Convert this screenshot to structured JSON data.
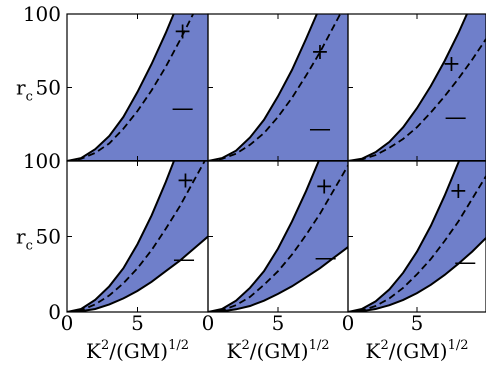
{
  "chart_data": {
    "type": "area",
    "layout": {
      "rows": 2,
      "cols": 3
    },
    "xlabel": {
      "base": "K",
      "sup": "2",
      "mid": "/(GM)",
      "sup2": "1/2"
    },
    "ylabel": {
      "base": "r",
      "sub": "c"
    },
    "xlim": [
      0,
      10
    ],
    "ylim": [
      0,
      100
    ],
    "x_ticks": [
      "0",
      "5"
    ],
    "y_ticks": [
      "0",
      "50",
      "100"
    ],
    "colors": {
      "fill": "#6f7fca",
      "line": "#000000",
      "axis": "#000000"
    },
    "x_samples": [
      0,
      1,
      2,
      3,
      4,
      5,
      6,
      7,
      8,
      9,
      10
    ],
    "panels": [
      {
        "upper": [
          0,
          2,
          8,
          17,
          30,
          47,
          66,
          87,
          110,
          135,
          160
        ],
        "lower": [
          0,
          0,
          0,
          0,
          0,
          0,
          0,
          0,
          0,
          0,
          0
        ],
        "dashed": [
          0,
          1.5,
          5.5,
          12,
          22,
          34,
          48,
          64,
          82,
          101,
          120
        ],
        "plus": [
          8.2,
          88
        ],
        "minus": [
          8.2,
          36
        ]
      },
      {
        "upper": [
          0,
          2,
          7,
          16,
          28,
          44,
          62,
          83,
          105,
          128,
          152
        ],
        "lower": [
          0,
          0,
          0,
          0,
          0,
          0,
          0,
          0,
          0,
          0,
          0
        ],
        "dashed": [
          0,
          1.4,
          5,
          11,
          19,
          30,
          43,
          58,
          74,
          92,
          110
        ],
        "plus": [
          8.0,
          74
        ],
        "minus": [
          8.0,
          22
        ]
      },
      {
        "upper": [
          0,
          1.5,
          6,
          13,
          23,
          36,
          51,
          68,
          87,
          108,
          130
        ],
        "lower": [
          0,
          0,
          0,
          0,
          0,
          0,
          0,
          0,
          0,
          0,
          0
        ],
        "dashed": [
          0,
          1,
          4,
          9,
          15,
          23,
          33,
          44,
          56,
          69,
          83
        ],
        "plus": [
          7.5,
          66
        ],
        "minus": [
          7.8,
          30
        ]
      },
      {
        "upper": [
          0,
          2,
          8,
          17,
          29,
          45,
          64,
          86,
          110,
          136,
          162
        ],
        "lower": [
          0,
          0.5,
          2,
          5,
          9,
          14,
          20,
          27,
          34,
          42,
          50
        ],
        "dashed": [
          0,
          1.2,
          5,
          11,
          19,
          29,
          41,
          55,
          70,
          87,
          104
        ],
        "plus": [
          8.4,
          87
        ],
        "minus": [
          8.3,
          35
        ]
      },
      {
        "upper": [
          0,
          2,
          7.5,
          16,
          27,
          42,
          60,
          80,
          102,
          126,
          150
        ],
        "lower": [
          0,
          0.4,
          1.8,
          4,
          7.5,
          12,
          17,
          23,
          29,
          36,
          43
        ],
        "dashed": [
          0,
          1.1,
          4.5,
          10,
          18,
          27,
          38,
          51,
          65,
          81,
          97
        ],
        "plus": [
          8.3,
          83
        ],
        "minus": [
          8.4,
          36
        ]
      },
      {
        "upper": [
          0,
          2,
          7,
          15,
          26,
          40,
          57,
          77,
          99,
          122,
          146
        ],
        "lower": [
          0,
          0.5,
          2,
          4.5,
          8,
          12.5,
          18,
          24.5,
          32,
          40,
          49
        ],
        "dashed": [
          0,
          1,
          4,
          9,
          16,
          25,
          35,
          47,
          60,
          75,
          90
        ],
        "plus": [
          8.0,
          80
        ],
        "minus": [
          8.5,
          33
        ]
      }
    ],
    "plus_label": "+",
    "minus_label": "—"
  }
}
